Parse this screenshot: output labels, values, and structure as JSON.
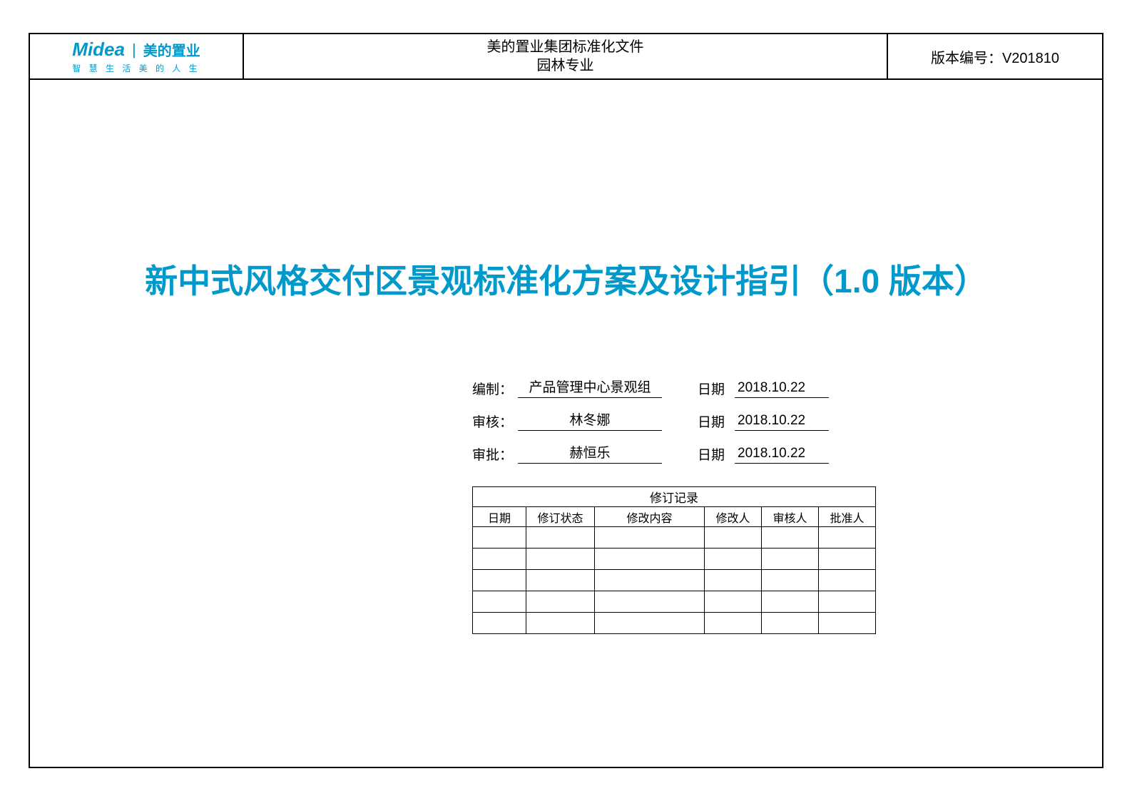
{
  "colors": {
    "accent": "#0099cc",
    "border": "#000000",
    "background": "#ffffff"
  },
  "header": {
    "logo_brand": "Midea",
    "logo_cn": "美的置业",
    "logo_tagline": "智 慧 生 活  美 的 人 生",
    "title_line1": "美的置业集团标准化文件",
    "title_line2": "园林专业",
    "version_label": "版本编号：",
    "version_value": "V201810"
  },
  "main_title": "新中式风格交付区景观标准化方案及设计指引（1.0 版本）",
  "signoff": {
    "rows": [
      {
        "label": "编制：",
        "value": "产品管理中心景观组",
        "date_label": "日期",
        "date_value": "2018.10.22"
      },
      {
        "label": "审核：",
        "value": "林冬娜",
        "date_label": "日期",
        "date_value": "2018.10.22"
      },
      {
        "label": "审批：",
        "value": "赫恒乐",
        "date_label": "日期",
        "date_value": "2018.10.22"
      }
    ]
  },
  "revision_table": {
    "title": "修订记录",
    "columns": [
      "日期",
      "修订状态",
      "修改内容",
      "修改人",
      "审核人",
      "批准人"
    ],
    "empty_rows": 5
  }
}
